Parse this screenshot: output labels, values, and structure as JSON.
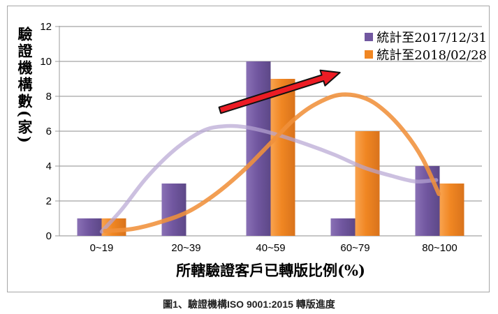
{
  "figure": {
    "caption": "圖1、驗證機構ISO 9001:2015 轉版進度"
  },
  "chart_data": {
    "type": "bar",
    "title": "",
    "categories": [
      "0~19",
      "20~39",
      "40~59",
      "60~79",
      "80~100"
    ],
    "series": [
      {
        "name": "統計至2017/12/31",
        "values": [
          1,
          3,
          10,
          1,
          4
        ],
        "color": "#7157A0",
        "gradient": [
          "#8A71B5",
          "#7157A0",
          "#5D4887"
        ]
      },
      {
        "name": "統計至2018/02/28",
        "values": [
          1,
          0,
          9,
          6,
          3
        ],
        "color": "#F08622",
        "gradient": [
          "#F9A34F",
          "#F08622",
          "#D9731C"
        ]
      }
    ],
    "xlabel": "所轄驗證客戶已轉版比例(%)",
    "ylabel": "驗證機構數(家)",
    "ylim": [
      0,
      12
    ],
    "yticks": [
      0,
      2,
      4,
      6,
      8,
      10,
      12
    ],
    "grid": true,
    "legend_position": "top-right",
    "trend_curves": [
      {
        "series": "統計至2017/12/31",
        "color": "#B7A5D3",
        "opacity": 0.7,
        "width": 5.5,
        "points": [
          [
            0.5,
            0.24
          ],
          [
            0.74,
            1.52
          ],
          [
            1.03,
            3.32
          ],
          [
            1.36,
            4.92
          ],
          [
            1.69,
            6.0
          ],
          [
            1.94,
            6.28
          ],
          [
            2.19,
            6.24
          ],
          [
            2.52,
            5.88
          ],
          [
            2.93,
            5.24
          ],
          [
            3.26,
            4.64
          ],
          [
            3.6,
            3.92
          ],
          [
            3.93,
            3.44
          ],
          [
            4.21,
            3.12
          ],
          [
            4.46,
            3.2
          ]
        ]
      },
      {
        "series": "統計至2018/02/28",
        "color": "#F0913B",
        "opacity": 0.88,
        "width": 6,
        "points": [
          [
            0.54,
            0.28
          ],
          [
            0.87,
            0.4
          ],
          [
            1.2,
            0.8
          ],
          [
            1.53,
            1.4
          ],
          [
            1.86,
            2.44
          ],
          [
            2.19,
            3.8
          ],
          [
            2.5,
            5.32
          ],
          [
            2.77,
            6.64
          ],
          [
            3.02,
            7.52
          ],
          [
            3.31,
            8.08
          ],
          [
            3.6,
            7.92
          ],
          [
            3.84,
            7.2
          ],
          [
            4.09,
            5.92
          ],
          [
            4.3,
            4.4
          ],
          [
            4.49,
            2.4
          ]
        ]
      }
    ],
    "annotations": [
      {
        "type": "arrow",
        "from": [
          1.9,
          7.2
        ],
        "to": [
          3.32,
          9.36
        ],
        "color": "#EC1C24",
        "outline": "#111111"
      }
    ]
  },
  "colors": {
    "background": "#FFFFFF",
    "border": "#A6A6A6",
    "gridline": "#8C8C8C",
    "axis": "#9B9B9B",
    "tick_text": "#000000"
  }
}
